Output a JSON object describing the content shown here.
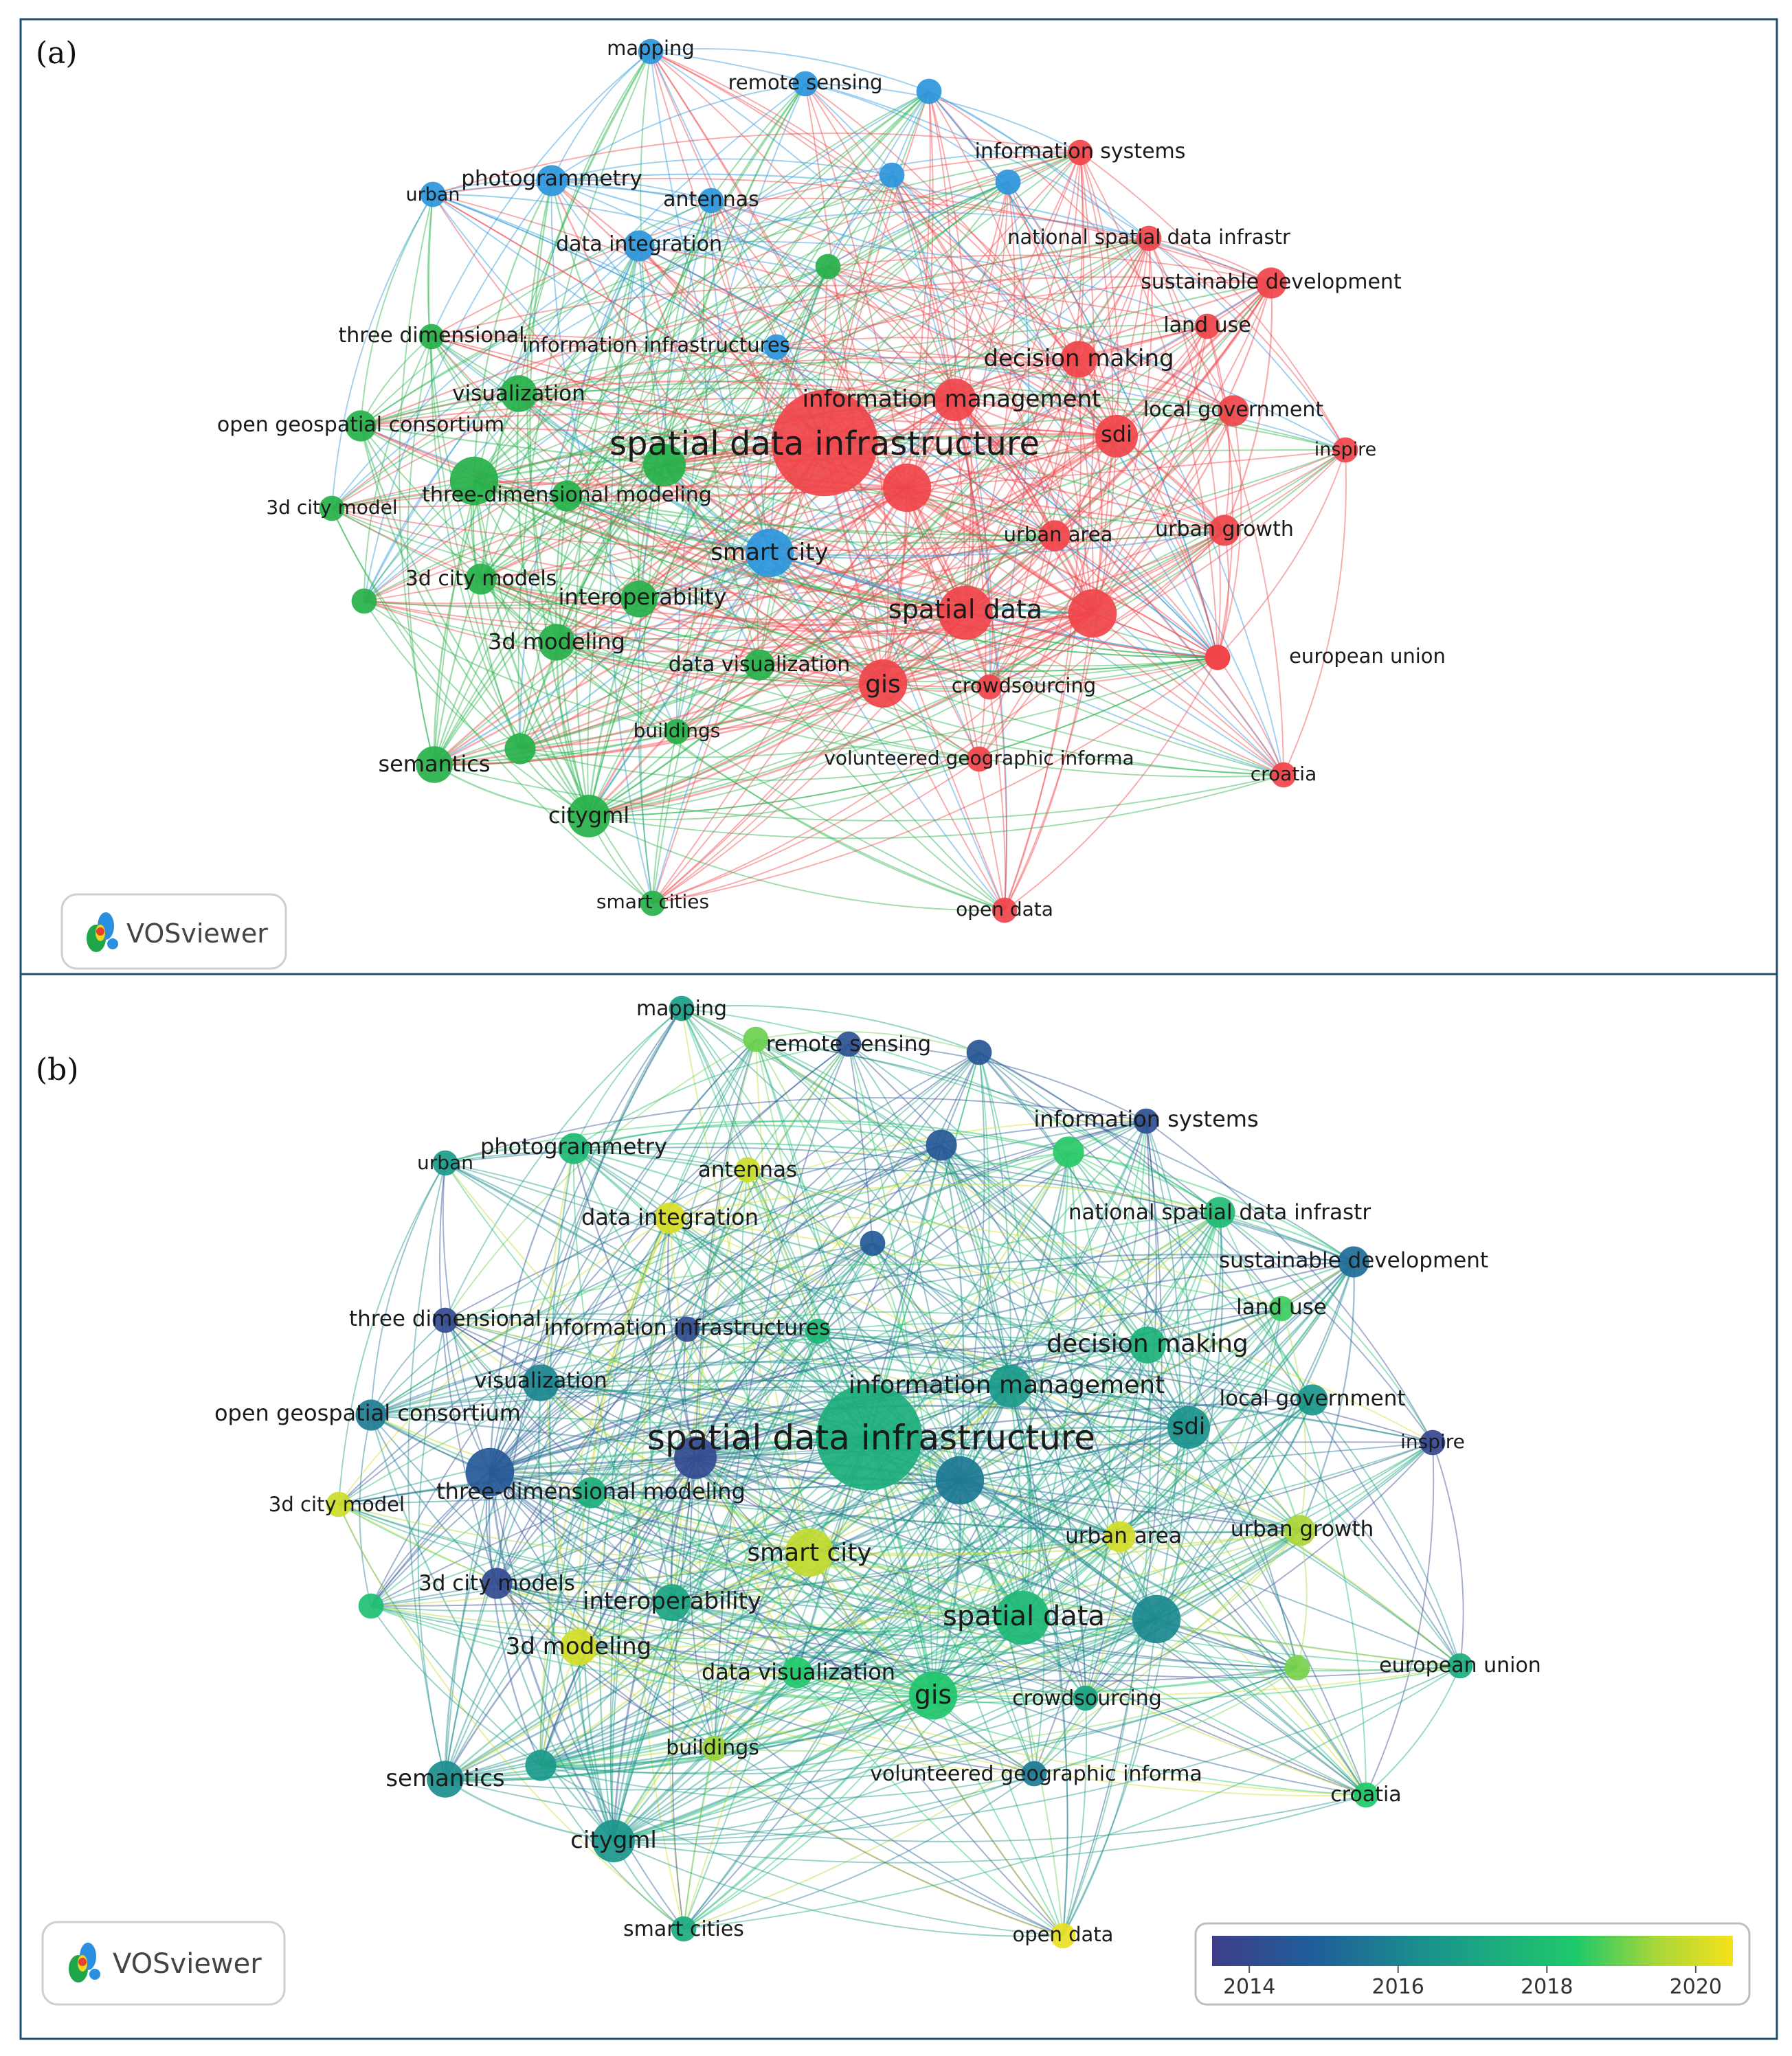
{
  "panels": [
    {
      "id": "a",
      "label": "(a)",
      "color_mode": "cluster",
      "logo_text": "VOSviewer",
      "nodes": [
        {
          "id": "mapping",
          "label": "mapping",
          "cluster": "blue",
          "weight": 2
        },
        {
          "id": "remote_sensing",
          "label": "remote sensing",
          "cluster": "blue",
          "weight": 2
        },
        {
          "id": "blue_node_1",
          "label": "",
          "cluster": "blue",
          "weight": 2
        },
        {
          "id": "information_systems",
          "label": "information systems",
          "cluster": "red",
          "weight": 2
        },
        {
          "id": "urban",
          "label": "urban",
          "cluster": "blue",
          "weight": 2
        },
        {
          "id": "photogrammetry",
          "label": "photogrammetry",
          "cluster": "blue",
          "weight": 3
        },
        {
          "id": "antennas",
          "label": "antennas",
          "cluster": "blue",
          "weight": 2
        },
        {
          "id": "blue_node_2",
          "label": "",
          "cluster": "blue",
          "weight": 2
        },
        {
          "id": "blue_node_3",
          "label": "",
          "cluster": "blue",
          "weight": 2
        },
        {
          "id": "data_integration",
          "label": "data integration",
          "cluster": "blue",
          "weight": 3
        },
        {
          "id": "national_sdi",
          "label": "national spatial data infrastr",
          "cluster": "red",
          "weight": 2
        },
        {
          "id": "green_node_1",
          "label": "",
          "cluster": "green",
          "weight": 2
        },
        {
          "id": "sustainable_development",
          "label": "sustainable development",
          "cluster": "red",
          "weight": 3
        },
        {
          "id": "land_use",
          "label": "land use",
          "cluster": "red",
          "weight": 2
        },
        {
          "id": "three_dimensional",
          "label": "three dimensional",
          "cluster": "green",
          "weight": 2
        },
        {
          "id": "information_infrastructures",
          "label": "information infrastructures",
          "cluster": "blue",
          "weight": 2
        },
        {
          "id": "decision_making",
          "label": "decision making",
          "cluster": "red",
          "weight": 4
        },
        {
          "id": "visualization",
          "label": "visualization",
          "cluster": "green",
          "weight": 4
        },
        {
          "id": "information_management",
          "label": "information management",
          "cluster": "red",
          "weight": 5
        },
        {
          "id": "local_government",
          "label": "local government",
          "cluster": "red",
          "weight": 3
        },
        {
          "id": "open_geospatial_consortium",
          "label": "open geospatial consortium",
          "cluster": "green",
          "weight": 3
        },
        {
          "id": "sdi",
          "label": "sdi",
          "cluster": "red",
          "weight": 5
        },
        {
          "id": "spatial_data_infrastructure",
          "label": "spatial data infrastructure",
          "cluster": "red",
          "weight": 16
        },
        {
          "id": "green_node_2",
          "label": "",
          "cluster": "green",
          "weight": 5
        },
        {
          "id": "inspire",
          "label": "inspire",
          "cluster": "red",
          "weight": 2
        },
        {
          "id": "red_node_1",
          "label": "",
          "cluster": "red",
          "weight": 6
        },
        {
          "id": "green_node_3",
          "label": "",
          "cluster": "green",
          "weight": 6
        },
        {
          "id": "3d_city_model",
          "label": "3d city model",
          "cluster": "green",
          "weight": 2
        },
        {
          "id": "three_dimensional_modeling",
          "label": "three-dimensional modeling",
          "cluster": "green",
          "weight": 3
        },
        {
          "id": "urban_growth",
          "label": "urban growth",
          "cluster": "red",
          "weight": 3
        },
        {
          "id": "urban_area",
          "label": "urban area",
          "cluster": "red",
          "weight": 3
        },
        {
          "id": "smart_city",
          "label": "smart city",
          "cluster": "blue",
          "weight": 6
        },
        {
          "id": "3d_city_models",
          "label": "3d city models",
          "cluster": "green",
          "weight": 3
        },
        {
          "id": "green_node_4",
          "label": "",
          "cluster": "green",
          "weight": 2
        },
        {
          "id": "interoperability",
          "label": "interoperability",
          "cluster": "green",
          "weight": 4
        },
        {
          "id": "spatial_data",
          "label": "spatial data",
          "cluster": "red",
          "weight": 7
        },
        {
          "id": "red_node_2",
          "label": "",
          "cluster": "red",
          "weight": 6
        },
        {
          "id": "3d_modeling",
          "label": "3d modeling",
          "cluster": "green",
          "weight": 4
        },
        {
          "id": "data_visualization",
          "label": "data visualization",
          "cluster": "green",
          "weight": 3
        },
        {
          "id": "european_union",
          "label": "european union",
          "cluster": "red",
          "weight": 2
        },
        {
          "id": "red_node_3",
          "label": "",
          "cluster": "red",
          "weight": 2
        },
        {
          "id": "gis",
          "label": "gis",
          "cluster": "red",
          "weight": 6
        },
        {
          "id": "crowdsourcing",
          "label": "crowdsourcing",
          "cluster": "red",
          "weight": 2
        },
        {
          "id": "buildings",
          "label": "buildings",
          "cluster": "green",
          "weight": 2
        },
        {
          "id": "green_node_5",
          "label": "",
          "cluster": "green",
          "weight": 3
        },
        {
          "id": "semantics",
          "label": "semantics",
          "cluster": "green",
          "weight": 4
        },
        {
          "id": "vgi",
          "label": "volunteered geographic informa",
          "cluster": "red",
          "weight": 2
        },
        {
          "id": "croatia",
          "label": "croatia",
          "cluster": "red",
          "weight": 2
        },
        {
          "id": "citygml",
          "label": "citygml",
          "cluster": "green",
          "weight": 5
        },
        {
          "id": "smart_cities",
          "label": "smart cities",
          "cluster": "green",
          "weight": 2
        },
        {
          "id": "open_data",
          "label": "open data",
          "cluster": "red",
          "weight": 2
        }
      ]
    },
    {
      "id": "b",
      "label": "(b)",
      "color_mode": "year",
      "logo_text": "VOSviewer",
      "colorbar": {
        "ticks": [
          "2014",
          "2016",
          "2018",
          "2020"
        ],
        "range": [
          2013.5,
          2020.5
        ],
        "colors": [
          "#3e3e8a",
          "#1f5f9a",
          "#1a9a8a",
          "#1fc96a",
          "#a6d63a",
          "#f5e21a"
        ]
      },
      "nodes": [
        {
          "id": "mapping",
          "label": "mapping",
          "year": 2016.4,
          "weight": 2
        },
        {
          "id": "green_node_b0",
          "label": "",
          "year": 2018.5,
          "weight": 2
        },
        {
          "id": "remote_sensing",
          "label": "remote sensing",
          "year": 2014.3,
          "weight": 2
        },
        {
          "id": "blue_node_1",
          "label": "",
          "year": 2014.5,
          "weight": 2
        },
        {
          "id": "information_systems",
          "label": "information systems",
          "year": 2014.2,
          "weight": 2
        },
        {
          "id": "urban",
          "label": "urban",
          "year": 2016.3,
          "weight": 2
        },
        {
          "id": "photogrammetry",
          "label": "photogrammetry",
          "year": 2017.2,
          "weight": 3
        },
        {
          "id": "antennas",
          "label": "antennas",
          "year": 2019.8,
          "weight": 2
        },
        {
          "id": "blue_node_2",
          "label": "",
          "year": 2014.6,
          "weight": 3
        },
        {
          "id": "green_node_b1",
          "label": "",
          "year": 2017.8,
          "weight": 3
        },
        {
          "id": "blue_node_3",
          "label": "",
          "year": 2014.7,
          "weight": 2
        },
        {
          "id": "data_integration",
          "label": "data integration",
          "year": 2020.0,
          "weight": 3
        },
        {
          "id": "national_sdi",
          "label": "national spatial data infrastr",
          "year": 2017.3,
          "weight": 3
        },
        {
          "id": "sustainable_development",
          "label": "sustainable development",
          "year": 2015.2,
          "weight": 3
        },
        {
          "id": "land_use",
          "label": "land use",
          "year": 2018.0,
          "weight": 2
        },
        {
          "id": "three_dimensional",
          "label": "three dimensional",
          "year": 2014.0,
          "weight": 2
        },
        {
          "id": "information_infrastructures",
          "label": "information infrastructures",
          "year": 2014.1,
          "weight": 2
        },
        {
          "id": "green_node_b2",
          "label": "",
          "year": 2017.2,
          "weight": 2
        },
        {
          "id": "decision_making",
          "label": "decision making",
          "year": 2017.0,
          "weight": 4
        },
        {
          "id": "visualization",
          "label": "visualization",
          "year": 2015.8,
          "weight": 4
        },
        {
          "id": "information_management",
          "label": "information management",
          "year": 2016.3,
          "weight": 5
        },
        {
          "id": "local_government",
          "label": "local government",
          "year": 2016.2,
          "weight": 3
        },
        {
          "id": "open_geospatial_consortium",
          "label": "open geospatial consortium",
          "year": 2015.6,
          "weight": 3
        },
        {
          "id": "sdi",
          "label": "sdi",
          "year": 2016.1,
          "weight": 5
        },
        {
          "id": "spatial_data_infrastructure",
          "label": "spatial data infrastructure",
          "year": 2016.9,
          "weight": 16
        },
        {
          "id": "purple_node_b",
          "label": "",
          "year": 2014.0,
          "weight": 5
        },
        {
          "id": "inspire",
          "label": "inspire",
          "year": 2013.9,
          "weight": 2
        },
        {
          "id": "blue_node_b4",
          "label": "",
          "year": 2015.5,
          "weight": 6
        },
        {
          "id": "blue_node_b5",
          "label": "",
          "year": 2014.6,
          "weight": 6
        },
        {
          "id": "3d_city_model",
          "label": "3d city model",
          "year": 2019.8,
          "weight": 2
        },
        {
          "id": "three_dimensional_modeling",
          "label": "three-dimensional modeling",
          "year": 2016.9,
          "weight": 3
        },
        {
          "id": "urban_growth",
          "label": "urban growth",
          "year": 2019.2,
          "weight": 3
        },
        {
          "id": "urban_area",
          "label": "urban area",
          "year": 2019.9,
          "weight": 3
        },
        {
          "id": "smart_city",
          "label": "smart city",
          "year": 2019.6,
          "weight": 6
        },
        {
          "id": "3d_city_models",
          "label": "3d city models",
          "year": 2014.0,
          "weight": 3
        },
        {
          "id": "green_node_b3",
          "label": "",
          "year": 2017.4,
          "weight": 2
        },
        {
          "id": "interoperability",
          "label": "interoperability",
          "year": 2016.6,
          "weight": 4
        },
        {
          "id": "spatial_data",
          "label": "spatial data",
          "year": 2017.2,
          "weight": 7
        },
        {
          "id": "blue_node_b6",
          "label": "",
          "year": 2015.9,
          "weight": 6
        },
        {
          "id": "3d_modeling",
          "label": "3d modeling",
          "year": 2019.9,
          "weight": 4
        },
        {
          "id": "data_visualization",
          "label": "data visualization",
          "year": 2017.7,
          "weight": 3
        },
        {
          "id": "green_node_b4",
          "label": "",
          "year": 2018.6,
          "weight": 2
        },
        {
          "id": "european_union",
          "label": "european union",
          "year": 2016.8,
          "weight": 2
        },
        {
          "id": "gis",
          "label": "gis",
          "year": 2017.6,
          "weight": 6
        },
        {
          "id": "crowdsourcing",
          "label": "crowdsourcing",
          "year": 2016.6,
          "weight": 2
        },
        {
          "id": "buildings",
          "label": "buildings",
          "year": 2019.0,
          "weight": 2
        },
        {
          "id": "teal_node_b",
          "label": "",
          "year": 2016.3,
          "weight": 3
        },
        {
          "id": "semantics",
          "label": "semantics",
          "year": 2016.0,
          "weight": 4
        },
        {
          "id": "vgi",
          "label": "volunteered geographic informa",
          "year": 2015.5,
          "weight": 2
        },
        {
          "id": "croatia",
          "label": "croatia",
          "year": 2017.7,
          "weight": 2
        },
        {
          "id": "citygml",
          "label": "citygml",
          "year": 2016.2,
          "weight": 5
        },
        {
          "id": "smart_cities",
          "label": "smart cities",
          "year": 2016.8,
          "weight": 2
        },
        {
          "id": "open_data",
          "label": "open data",
          "year": 2020.3,
          "weight": 2
        }
      ]
    }
  ],
  "colors": {
    "cluster_red": "#f0444a",
    "cluster_green": "#26b14a",
    "cluster_blue": "#2c96dc",
    "frame": "#1f4e6e"
  }
}
